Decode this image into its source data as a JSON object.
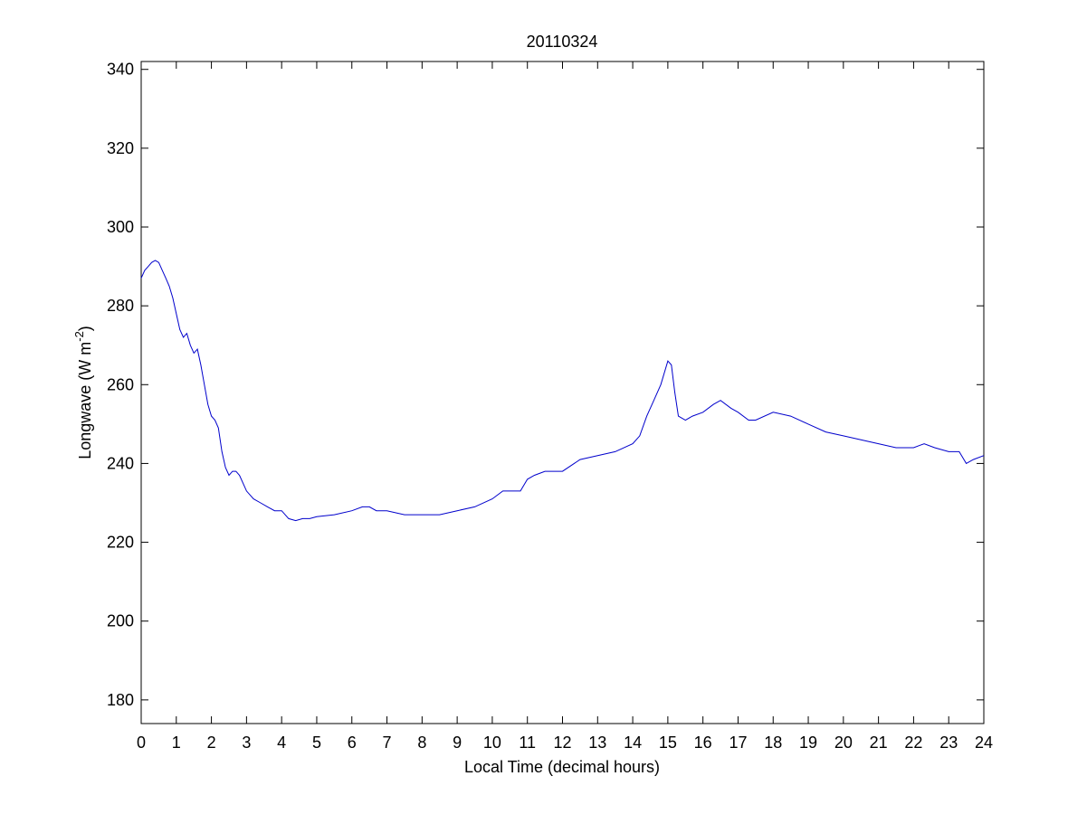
{
  "chart_data": {
    "type": "line",
    "title": "20110324",
    "xlabel": "Local Time (decimal hours)",
    "ylabel": {
      "text": "Longwave (W m",
      "superscript": "-2",
      "suffix": ")"
    },
    "xlim": [
      0,
      24
    ],
    "ylim": [
      174,
      342
    ],
    "xticks": [
      0,
      1,
      2,
      3,
      4,
      5,
      6,
      7,
      8,
      9,
      10,
      11,
      12,
      13,
      14,
      15,
      16,
      17,
      18,
      19,
      20,
      21,
      22,
      23,
      24
    ],
    "yticks": [
      180,
      200,
      220,
      240,
      260,
      280,
      300,
      320,
      340
    ],
    "grid": false,
    "line_color": "#0000cc",
    "series": [
      {
        "x": [
          0,
          0.1,
          0.2,
          0.3,
          0.4,
          0.5,
          0.6,
          0.7,
          0.8,
          0.9,
          1.0,
          1.1,
          1.2,
          1.3,
          1.4,
          1.5,
          1.6,
          1.7,
          1.8,
          1.9,
          2.0,
          2.1,
          2.2,
          2.3,
          2.4,
          2.5,
          2.6,
          2.7,
          2.8,
          2.9,
          3.0,
          3.2,
          3.4,
          3.6,
          3.8,
          4.0,
          4.2,
          4.4,
          4.6,
          4.8,
          5.0,
          5.5,
          6.0,
          6.3,
          6.5,
          6.7,
          7.0,
          7.5,
          8.0,
          8.5,
          9.0,
          9.5,
          10.0,
          10.3,
          10.5,
          10.8,
          11.0,
          11.2,
          11.5,
          12.0,
          12.5,
          13.0,
          13.5,
          14.0,
          14.2,
          14.4,
          14.6,
          14.8,
          15.0,
          15.1,
          15.2,
          15.3,
          15.5,
          15.7,
          16.0,
          16.3,
          16.5,
          16.8,
          17.0,
          17.3,
          17.5,
          18.0,
          18.5,
          19.0,
          19.5,
          20.0,
          20.5,
          21.0,
          21.5,
          22.0,
          22.3,
          22.6,
          23.0,
          23.3,
          23.5,
          23.7,
          24.0
        ],
        "y": [
          287,
          289,
          290,
          291,
          291.5,
          291,
          289,
          287,
          285,
          282,
          278,
          274,
          272,
          273,
          270,
          268,
          269,
          265,
          260,
          255,
          252,
          251,
          249,
          243,
          239,
          237,
          238,
          238,
          237,
          235,
          233,
          231,
          230,
          229,
          228,
          228,
          226,
          225.5,
          226,
          226,
          226.5,
          227,
          228,
          229,
          229,
          228,
          228,
          227,
          227,
          227,
          228,
          229,
          231,
          233,
          233,
          233,
          236,
          237,
          238,
          238,
          241,
          242,
          243,
          245,
          247,
          252,
          256,
          260,
          266,
          265,
          258,
          252,
          251,
          252,
          253,
          255,
          256,
          254,
          253,
          251,
          251,
          253,
          252,
          250,
          248,
          247,
          246,
          245,
          244,
          244,
          245,
          244,
          243,
          243,
          240,
          241,
          242
        ]
      }
    ]
  }
}
